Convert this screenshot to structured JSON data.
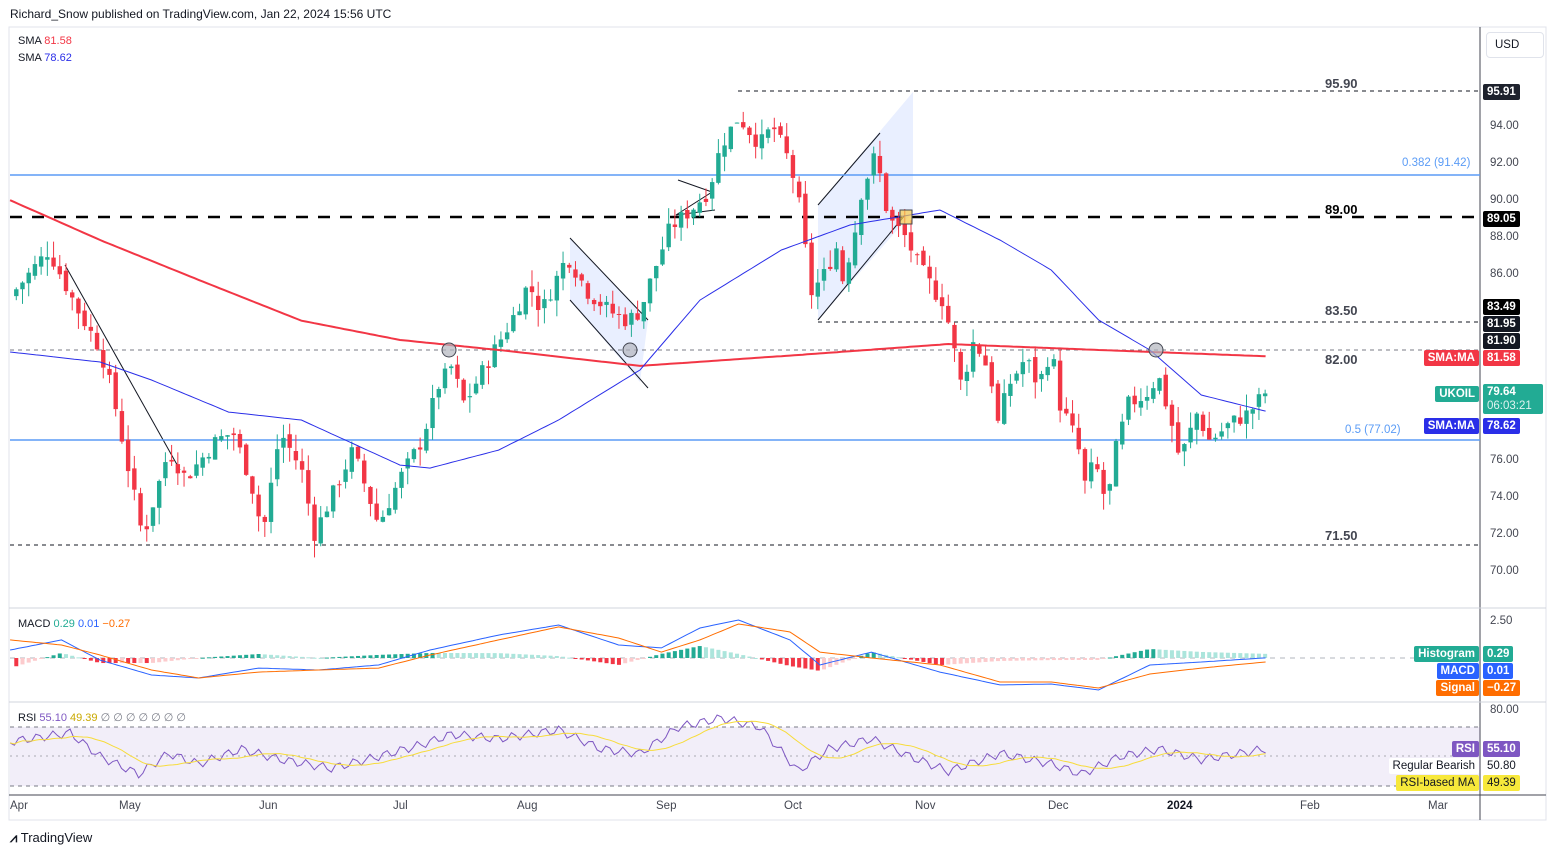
{
  "header": {
    "published": "Richard_Snow published on TradingView.com, Jan 22, 2024 15:56 UTC"
  },
  "legend": {
    "sma1_label": "SMA",
    "sma1_value": "81.58",
    "sma2_label": "SMA",
    "sma2_value": "78.62",
    "macd_label": "MACD",
    "macd_hist": "0.29",
    "macd_macd": "0.01",
    "macd_signal": "−0.27",
    "rsi_label": "RSI",
    "rsi_value": "55.10",
    "rsi_ma": "49.39",
    "rsi_extra": "∅ ∅ ∅ ∅ ∅ ∅ ∅"
  },
  "currency": "USD",
  "levels": {
    "l9590": "95.90",
    "l8900": "89.00",
    "l8350": "83.50",
    "l8200": "82.00",
    "l7150": "71.50",
    "fib382": "0.382 (91.42)",
    "fib5": "0.5 (77.02)"
  },
  "price_axis": [
    "94.00",
    "92.00",
    "90.00",
    "88.00",
    "86.00",
    "76.00",
    "74.00",
    "72.00",
    "70.00"
  ],
  "price_tags": {
    "t9591": "95.91",
    "t8905": "89.05",
    "t8349": "83.49",
    "t8195": "81.95",
    "t8190": "81.90",
    "sma_ma_red": "SMA:MA",
    "sma_red": "81.58",
    "symbol": "UKOIL",
    "last": "79.64",
    "countdown": "06:03:21",
    "sma_ma_blue": "SMA:MA",
    "sma_blue": "78.62"
  },
  "macd_axis": [
    "2.50"
  ],
  "macd_tags": {
    "hist_label": "Histogram",
    "hist": "0.29",
    "macd_label": "MACD",
    "macd": "0.01",
    "signal_label": "Signal",
    "signal": "−0.27"
  },
  "rsi_axis": [
    "80.00"
  ],
  "rsi_tags": {
    "rsi_label": "RSI",
    "rsi": "55.10",
    "bear_label": "Regular Bearish",
    "bear": "50.80",
    "ma_label": "RSI-based MA",
    "ma": "49.39"
  },
  "time_axis": [
    "Apr",
    "May",
    "Jun",
    "Jul",
    "Aug",
    "Sep",
    "Oct",
    "Nov",
    "Dec",
    "2024",
    "Feb",
    "Mar"
  ],
  "brand": "TradingView",
  "colors": {
    "up": "#22ab94",
    "down": "#f23645",
    "sma200": "#f23645",
    "sma50": "#2a2ee8",
    "macd": "#2962ff",
    "signal": "#ff6d00",
    "rsi": "#7e57c2",
    "rsima": "#f7dc3b"
  },
  "chart_data": {
    "type": "candlestick",
    "title": "UKOIL daily",
    "x_unit": "days since 2023-04-01",
    "ylim": [
      69,
      97
    ],
    "close_keypoints": [
      [
        2,
        84.8
      ],
      [
        11,
        87.3
      ],
      [
        18,
        84
      ],
      [
        23,
        82
      ],
      [
        26,
        79.5
      ],
      [
        33,
        71.8
      ],
      [
        39,
        76.5
      ],
      [
        43,
        75
      ],
      [
        50,
        77
      ],
      [
        54,
        77.5
      ],
      [
        58,
        75
      ],
      [
        61,
        72
      ],
      [
        65,
        77.5
      ],
      [
        70,
        75.5
      ],
      [
        73,
        72
      ],
      [
        82,
        76.5
      ],
      [
        88,
        72.5
      ],
      [
        93,
        75
      ],
      [
        98,
        77
      ],
      [
        102,
        80
      ],
      [
        105,
        81
      ],
      [
        108,
        79
      ],
      [
        114,
        81.5
      ],
      [
        119,
        83.5
      ],
      [
        123,
        85.5
      ],
      [
        126,
        84
      ],
      [
        132,
        87
      ],
      [
        137,
        85
      ],
      [
        142,
        84
      ],
      [
        146,
        83.5
      ],
      [
        149,
        84
      ],
      [
        152,
        86
      ],
      [
        156,
        88.5
      ],
      [
        161,
        89.5
      ],
      [
        165,
        90.5
      ],
      [
        168,
        93
      ],
      [
        172,
        94.5
      ],
      [
        177,
        93
      ],
      [
        180,
        94
      ],
      [
        184,
        92
      ],
      [
        186,
        90
      ],
      [
        189,
        85
      ],
      [
        192,
        86
      ],
      [
        195,
        87.5
      ],
      [
        196,
        85.5
      ],
      [
        199,
        88
      ],
      [
        200,
        90
      ],
      [
        204,
        92.5
      ],
      [
        207,
        89
      ],
      [
        211,
        88
      ],
      [
        214,
        86.5
      ],
      [
        218,
        85
      ],
      [
        220,
        84.5
      ],
      [
        224,
        80
      ],
      [
        227,
        82.5
      ],
      [
        231,
        80.5
      ],
      [
        232,
        77.5
      ],
      [
        235,
        80
      ],
      [
        239,
        81.5
      ],
      [
        242,
        80
      ],
      [
        245,
        82
      ],
      [
        247,
        79
      ],
      [
        251,
        77
      ],
      [
        253,
        74.5
      ],
      [
        255,
        76
      ],
      [
        258,
        73.5
      ],
      [
        260,
        76.5
      ],
      [
        263,
        79
      ],
      [
        267,
        79.5
      ],
      [
        270,
        80.5
      ],
      [
        273,
        78
      ],
      [
        275,
        76
      ],
      [
        279,
        78.5
      ],
      [
        282,
        77
      ],
      [
        287,
        78
      ],
      [
        291,
        78.5
      ],
      [
        295,
        79.64
      ]
    ],
    "sma200_keypoints": [
      [
        2,
        90.0
      ],
      [
        23,
        87.85
      ],
      [
        46,
        85.7
      ],
      [
        70,
        83.5
      ],
      [
        93,
        82.46
      ],
      [
        116,
        81.92
      ],
      [
        149,
        81.06
      ],
      [
        186,
        81.65
      ],
      [
        221,
        82.24
      ],
      [
        256,
        81.92
      ],
      [
        295,
        81.58
      ]
    ],
    "sma50_keypoints": [
      [
        2,
        81.81
      ],
      [
        23,
        81.27
      ],
      [
        35,
        80.3
      ],
      [
        53,
        78.57
      ],
      [
        70,
        78.14
      ],
      [
        93,
        75.71
      ],
      [
        100,
        75.55
      ],
      [
        116,
        76.52
      ],
      [
        130,
        78.14
      ],
      [
        149,
        80.84
      ],
      [
        163,
        84.61
      ],
      [
        182,
        87.31
      ],
      [
        198,
        88.66
      ],
      [
        219,
        89.47
      ],
      [
        233,
        87.85
      ],
      [
        245,
        86.23
      ],
      [
        256,
        83.54
      ],
      [
        268,
        81.92
      ],
      [
        280,
        79.49
      ],
      [
        295,
        78.62
      ]
    ],
    "macd_keypoints": [
      [
        2,
        0.54
      ],
      [
        14,
        1.22
      ],
      [
        23,
        -0.14
      ],
      [
        35,
        -1.15
      ],
      [
        46,
        -1.35
      ],
      [
        60,
        -0.68
      ],
      [
        74,
        -0.81
      ],
      [
        88,
        -0.47
      ],
      [
        100,
        0.54
      ],
      [
        116,
        1.55
      ],
      [
        130,
        2.23
      ],
      [
        144,
        0.88
      ],
      [
        154,
        0.68
      ],
      [
        163,
        2.03
      ],
      [
        172,
        2.57
      ],
      [
        184,
        1.22
      ],
      [
        191,
        -0.47
      ],
      [
        203,
        0.4
      ],
      [
        219,
        -0.95
      ],
      [
        233,
        -1.82
      ],
      [
        245,
        -1.76
      ],
      [
        256,
        -2.16
      ],
      [
        268,
        -0.47
      ],
      [
        280,
        -0.27
      ],
      [
        295,
        0.01
      ]
    ],
    "signal_keypoints": [
      [
        2,
        1.22
      ],
      [
        14,
        0.88
      ],
      [
        23,
        0.2
      ],
      [
        35,
        -0.81
      ],
      [
        46,
        -1.35
      ],
      [
        60,
        -0.95
      ],
      [
        74,
        -0.81
      ],
      [
        88,
        -0.68
      ],
      [
        100,
        0.2
      ],
      [
        116,
        1.22
      ],
      [
        130,
        2.1
      ],
      [
        144,
        1.35
      ],
      [
        154,
        0.4
      ],
      [
        163,
        1.22
      ],
      [
        172,
        2.3
      ],
      [
        184,
        1.76
      ],
      [
        191,
        0.4
      ],
      [
        203,
        0
      ],
      [
        219,
        -0.47
      ],
      [
        233,
        -1.62
      ],
      [
        245,
        -1.62
      ],
      [
        256,
        -2.03
      ],
      [
        268,
        -1.08
      ],
      [
        280,
        -0.68
      ],
      [
        295,
        -0.27
      ]
    ],
    "rsi_keypoints": [
      [
        2,
        60
      ],
      [
        16,
        66
      ],
      [
        23,
        50
      ],
      [
        32,
        38
      ],
      [
        39,
        52
      ],
      [
        46,
        45
      ],
      [
        56,
        55
      ],
      [
        65,
        48
      ],
      [
        77,
        42
      ],
      [
        88,
        50
      ],
      [
        98,
        58
      ],
      [
        105,
        65
      ],
      [
        116,
        62
      ],
      [
        130,
        68
      ],
      [
        140,
        55
      ],
      [
        149,
        52
      ],
      [
        158,
        70
      ],
      [
        168,
        76
      ],
      [
        177,
        70
      ],
      [
        186,
        40
      ],
      [
        193,
        55
      ],
      [
        203,
        62
      ],
      [
        212,
        50
      ],
      [
        221,
        40
      ],
      [
        233,
        52
      ],
      [
        245,
        45
      ],
      [
        252,
        38
      ],
      [
        261,
        50
      ],
      [
        270,
        55
      ],
      [
        280,
        48
      ],
      [
        289,
        52
      ],
      [
        295,
        55.1
      ]
    ],
    "rsi_levels": [
      70,
      50,
      30
    ]
  }
}
